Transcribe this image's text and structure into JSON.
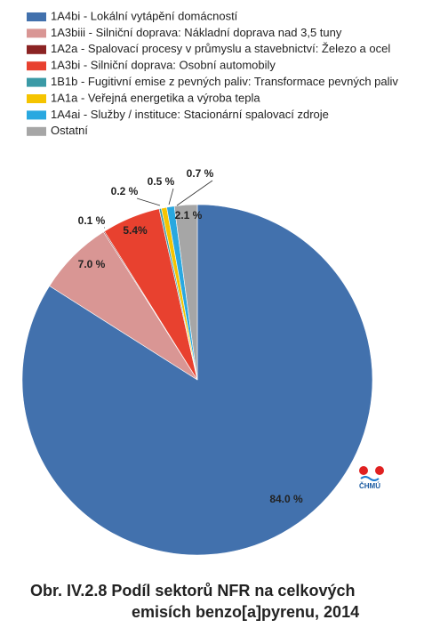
{
  "chart_data": {
    "type": "pie",
    "title": [
      "Obr. IV.2.8  Podíl sektorů NFR na celkových",
      "emisích benzo[a]pyrenu, 2014"
    ],
    "categories": [
      "1A4bi - Lokální vytápění domácností",
      "1A3biii - Silniční doprava: Nákladní doprava nad 3,5 tuny",
      "1A2a - Spalovací procesy v průmyslu a stavebnictví: Železo a ocel",
      "1A3bi - Silniční doprava: Osobní automobily",
      "1B1b - Fugitivní emise z pevných paliv: Transformace pevných paliv",
      "1A1a - Veřejná energetika a výroba tepla",
      "1A4ai - Služby / instituce: Stacionární spalovací zdroje",
      "Ostatní"
    ],
    "values": [
      84.0,
      7.0,
      0.1,
      5.4,
      0.2,
      0.5,
      0.7,
      2.1
    ],
    "value_labels": [
      "84.0 %",
      "7.0 %",
      "0.1 %",
      "5.4%",
      "0.2 %",
      "0.5 %",
      "0.7 %",
      "2.1 %"
    ],
    "colors": [
      "#4271ad",
      "#d99694",
      "#8b2323",
      "#e8412f",
      "#3b9aa6",
      "#f5c400",
      "#29a8e0",
      "#a6a6a6"
    ],
    "logo_text": "ČHMÚ"
  }
}
